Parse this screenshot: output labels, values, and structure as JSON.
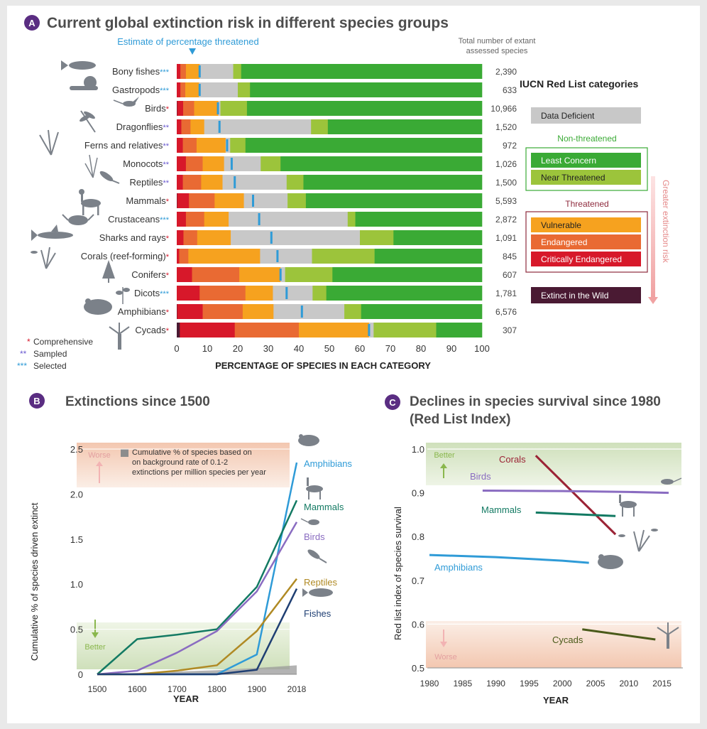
{
  "colors": {
    "extinct_in_wild": "#4a1a33",
    "critically_endangered": "#d7182a",
    "endangered": "#e96a33",
    "vulnerable": "#f6a21f",
    "near_threatened": "#9cc43b",
    "least_concern": "#3aaa35",
    "data_deficient": "#c8c8c8",
    "estimate_marker": "#2f9bd7",
    "panel_badge": "#5a2d82",
    "threatened_box": "#8e2a3c",
    "nonthreatened_box": "#3aaa35",
    "arrow_pink": "#f2a7a7"
  },
  "panel_a": {
    "badge": "A",
    "title": "Current global extinction risk in different species groups",
    "estimate_label": "Estimate of percentage threatened",
    "total_label_line1": "Total number of extant",
    "total_label_line2": "assessed species",
    "xlabel": "PERCENTAGE OF SPECIES IN EACH CATEGORY",
    "ticks": [
      "0",
      "10",
      "20",
      "30",
      "40",
      "50",
      "60",
      "70",
      "80",
      "90",
      "100"
    ],
    "key": {
      "comprehensive": "Comprehensive",
      "sampled": "Sampled",
      "selected": "Selected",
      "star1": "*",
      "star2": "**",
      "star3": "***"
    },
    "legend": {
      "title": "IUCN Red List categories",
      "data_deficient": "Data Deficient",
      "non_threatened": "Non-threatened",
      "least_concern": "Least Concern",
      "near_threatened": "Near Threatened",
      "threatened": "Threatened",
      "vulnerable": "Vulnerable",
      "endangered": "Endangered",
      "critically_endangered": "Critically Endangered",
      "extinct_in_wild": "Extinct in the Wild",
      "risk_arrow": "Greater extinction risk"
    }
  },
  "panel_b": {
    "badge": "B",
    "title": "Extinctions since 1500",
    "ylabel": "Cumulative % of species driven extinct",
    "xlabel": "YEAR",
    "worse": "Worse",
    "better": "Better",
    "background_note_line1": "Cumulative % of species based on",
    "background_note_line2": "on background rate of 0.1-2",
    "background_note_line3": "extinctions per million species per year"
  },
  "panel_c": {
    "badge": "C",
    "title_line1": "Declines in species survival since 1980",
    "title_line2": "(Red List Index)",
    "ylabel": "Red list index of species survival",
    "xlabel": "YEAR",
    "better": "Better",
    "worse": "Worse"
  },
  "chart_data": [
    {
      "type": "bar",
      "stacked": true,
      "orientation": "horizontal",
      "title": "Current global extinction risk in different species groups",
      "xlabel": "PERCENTAGE OF SPECIES IN EACH CATEGORY",
      "xlim": [
        0,
        100
      ],
      "category_order": [
        "Extinct in the Wild",
        "Critically Endangered",
        "Endangered",
        "Vulnerable",
        "Near Threatened",
        "Least Concern",
        "Data Deficient"
      ],
      "segment_order": [
        "ew",
        "cr",
        "en",
        "vu",
        "dd",
        "nt",
        "lc"
      ],
      "rows": [
        {
          "name": "Bony fishes",
          "stars": "***",
          "total": "2,390",
          "estimate": 7.5,
          "ew": 0,
          "cr": 1.2,
          "en": 1.8,
          "vu": 4.5,
          "dd": 11,
          "nt": 2.6,
          "lc": 78.9
        },
        {
          "name": "Gastropods",
          "stars": "***",
          "total": "633",
          "estimate": 7.5,
          "ew": 0,
          "cr": 1.2,
          "en": 1.6,
          "vu": 4.5,
          "dd": 12.7,
          "nt": 4,
          "lc": 76
        },
        {
          "name": "Birds",
          "stars": "*",
          "total": "10,966",
          "estimate": 13.5,
          "ew": 0.1,
          "cr": 2,
          "en": 3.6,
          "vu": 7.9,
          "dd": 0.7,
          "nt": 8.7,
          "lc": 77
        },
        {
          "name": "Dragonflies",
          "stars": "**",
          "total": "1,520",
          "estimate": 14,
          "ew": 0,
          "cr": 1.5,
          "en": 3,
          "vu": 4.5,
          "dd": 35,
          "nt": 5.5,
          "lc": 50.5
        },
        {
          "name": "Ferns and relatives",
          "stars": "**",
          "total": "972",
          "estimate": 16.5,
          "ew": 0,
          "cr": 2,
          "en": 4.5,
          "vu": 9.5,
          "dd": 1.5,
          "nt": 5,
          "lc": 77.5
        },
        {
          "name": "Monocots",
          "stars": "**",
          "total": "1,026",
          "estimate": 18,
          "ew": 0,
          "cr": 3,
          "en": 5.5,
          "vu": 7,
          "dd": 12,
          "nt": 6.5,
          "lc": 66
        },
        {
          "name": "Reptiles",
          "stars": "**",
          "total": "1,500",
          "estimate": 19,
          "ew": 0,
          "cr": 2,
          "en": 6,
          "vu": 7,
          "dd": 21,
          "nt": 5.5,
          "lc": 58.5
        },
        {
          "name": "Mammals",
          "stars": "*",
          "total": "5,593",
          "estimate": 25,
          "ew": 0.1,
          "cr": 3.9,
          "en": 8.4,
          "vu": 9.6,
          "dd": 14.3,
          "nt": 6,
          "lc": 57.7
        },
        {
          "name": "Crustaceans",
          "stars": "***",
          "total": "2,872",
          "estimate": 27,
          "ew": 0,
          "cr": 3,
          "en": 6,
          "vu": 8,
          "dd": 39,
          "nt": 2.5,
          "lc": 41.5
        },
        {
          "name": "Sharks and rays",
          "stars": "*",
          "total": "1,091",
          "estimate": 31,
          "ew": 0,
          "cr": 2.2,
          "en": 4.5,
          "vu": 11,
          "dd": 42.3,
          "nt": 11,
          "lc": 29
        },
        {
          "name": "Corals (reef-forming)",
          "stars": "*",
          "total": "845",
          "estimate": 33,
          "ew": 0,
          "cr": 0.8,
          "en": 3,
          "vu": 23.5,
          "dd": 17,
          "nt": 20.5,
          "lc": 35.2
        },
        {
          "name": "Conifers",
          "stars": "*",
          "total": "607",
          "estimate": 34,
          "ew": 0,
          "cr": 5,
          "en": 15.5,
          "vu": 13.5,
          "dd": 1.5,
          "nt": 15.5,
          "lc": 49
        },
        {
          "name": "Dicots",
          "stars": "***",
          "total": "1,781",
          "estimate": 36,
          "ew": 0,
          "cr": 7.5,
          "en": 15,
          "vu": 9,
          "dd": 13,
          "nt": 4.5,
          "lc": 51
        },
        {
          "name": "Amphibians",
          "stars": "*",
          "total": "6,576",
          "estimate": 41,
          "ew": 0.1,
          "cr": 8.4,
          "en": 13.1,
          "vu": 10.1,
          "dd": 23.2,
          "nt": 5.5,
          "lc": 39.6
        },
        {
          "name": "Cycads",
          "stars": "*",
          "total": "307",
          "estimate": 63,
          "ew": 1,
          "cr": 18,
          "en": 21,
          "vu": 23,
          "dd": 1.5,
          "nt": 20.5,
          "lc": 15
        }
      ]
    },
    {
      "type": "line",
      "title": "Extinctions since 1500",
      "xlabel": "YEAR",
      "ylabel": "Cumulative % of species driven extinct",
      "x": [
        1500,
        1600,
        1700,
        1800,
        1900,
        2018
      ],
      "x_tick_labels": [
        "1500",
        "1600",
        "1700",
        "1800",
        "1900",
        "2018"
      ],
      "y_tick_labels": [
        "0",
        "0.5",
        "1.0",
        "1.5",
        "2.0",
        "2.5"
      ],
      "ylim": [
        0,
        2.5
      ],
      "series": [
        {
          "name": "Amphibians",
          "color": "#2f9bd7",
          "values": [
            0,
            0,
            0,
            0,
            0.22,
            2.35
          ]
        },
        {
          "name": "Mammals",
          "color": "#137a63",
          "values": [
            0,
            0.39,
            0.44,
            0.5,
            0.97,
            1.93
          ]
        },
        {
          "name": "Birds",
          "color": "#8a6cc1",
          "values": [
            0,
            0.04,
            0.24,
            0.48,
            0.92,
            1.69
          ]
        },
        {
          "name": "Reptiles",
          "color": "#b08a24",
          "values": [
            0,
            0,
            0.04,
            0.1,
            0.48,
            1.06
          ]
        },
        {
          "name": "Fishes",
          "color": "#1f3f73",
          "values": [
            0,
            0,
            0,
            0,
            0.05,
            0.95
          ]
        }
      ],
      "background_rate": [
        0,
        0.015,
        0.03,
        0.045,
        0.07,
        0.1
      ]
    },
    {
      "type": "line",
      "title": "Declines in species survival since 1980 (Red List Index)",
      "xlabel": "YEAR",
      "ylabel": "Red list index of species survival",
      "x_ticks": [
        1980,
        1985,
        1990,
        1995,
        2000,
        2005,
        2010,
        2015
      ],
      "y_tick_labels": [
        "0.5",
        "0.6",
        "0.7",
        "0.8",
        "0.9",
        "1.0"
      ],
      "xlim": [
        1980,
        2019
      ],
      "ylim": [
        0.5,
        1.0
      ],
      "series": [
        {
          "name": "Corals",
          "color": "#9b2335",
          "points": [
            [
              1996,
              0.985
            ],
            [
              2008,
              0.805
            ]
          ]
        },
        {
          "name": "Birds",
          "color": "#8a6cc1",
          "points": [
            [
              1988,
              0.905
            ],
            [
              2000,
              0.904
            ],
            [
              2010,
              0.902
            ],
            [
              2016,
              0.9
            ]
          ]
        },
        {
          "name": "Mammals",
          "color": "#137a63",
          "points": [
            [
              1996,
              0.855
            ],
            [
              2008,
              0.847
            ]
          ]
        },
        {
          "name": "Amphibians",
          "color": "#2f9bd7",
          "points": [
            [
              1980,
              0.758
            ],
            [
              1990,
              0.753
            ],
            [
              2000,
              0.745
            ],
            [
              2004,
              0.74
            ]
          ]
        },
        {
          "name": "Cycads",
          "color": "#4a5a1a",
          "points": [
            [
              2003,
              0.588
            ],
            [
              2014,
              0.565
            ]
          ]
        }
      ]
    }
  ]
}
